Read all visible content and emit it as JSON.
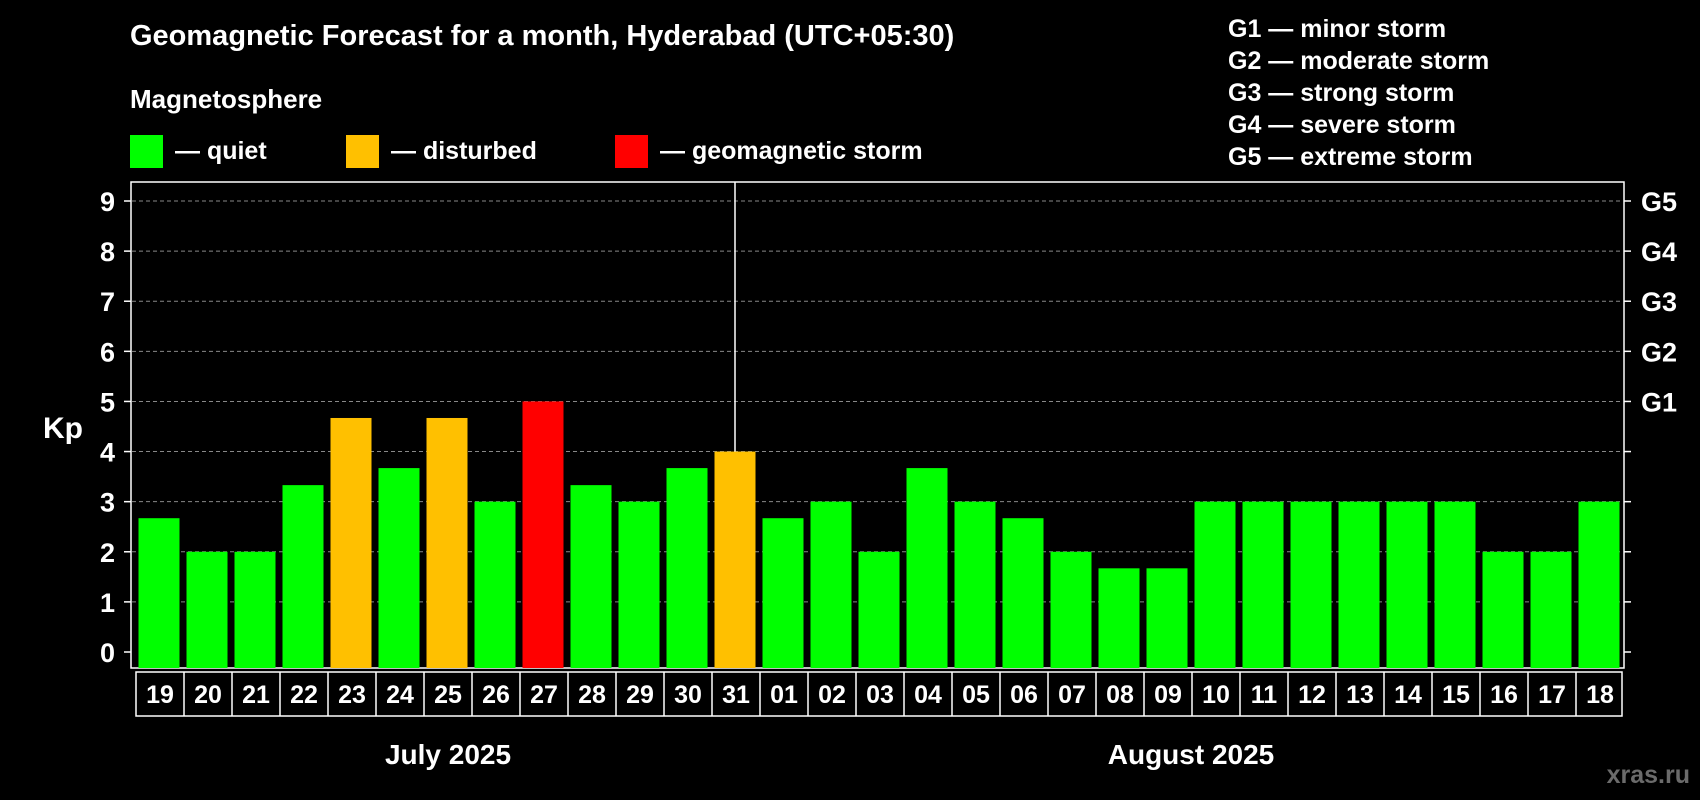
{
  "header": {
    "title": "Geomagnetic Forecast for a month, Hyderabad (UTC+05:30)",
    "magnetosphere_label": "Magnetosphere",
    "legend": [
      {
        "label": "— quiet",
        "color": "#00ff00"
      },
      {
        "label": "— disturbed",
        "color": "#ffc000"
      },
      {
        "label": "— geomagnetic storm",
        "color": "#ff0000"
      }
    ],
    "g_scale": [
      "G1 — minor storm",
      "G2 — moderate storm",
      "G3 — strong storm",
      "G4 — severe storm",
      "G5 — extreme storm"
    ]
  },
  "watermark": "xras.ru",
  "chart_data": {
    "type": "bar",
    "title": "Geomagnetic Forecast for a month, Hyderabad (UTC+05:30)",
    "ylabel": "Kp",
    "ylim": [
      0,
      9
    ],
    "yticks": [
      "0",
      "1",
      "2",
      "3",
      "4",
      "5",
      "6",
      "7",
      "8",
      "9"
    ],
    "right_ticks": [
      {
        "value": 5,
        "label": "G1"
      },
      {
        "value": 6,
        "label": "G2"
      },
      {
        "value": 7,
        "label": "G3"
      },
      {
        "value": 8,
        "label": "G4"
      },
      {
        "value": 9,
        "label": "G5"
      }
    ],
    "grid": "dashed horizontal",
    "month_labels": [
      "July 2025",
      "August 2025"
    ],
    "month_split_index": 13,
    "categories": [
      "19",
      "20",
      "21",
      "22",
      "23",
      "24",
      "25",
      "26",
      "27",
      "28",
      "29",
      "30",
      "31",
      "01",
      "02",
      "03",
      "04",
      "05",
      "06",
      "07",
      "08",
      "09",
      "10",
      "11",
      "12",
      "13",
      "14",
      "15",
      "16",
      "17",
      "18"
    ],
    "values": [
      2.67,
      2,
      2,
      3.33,
      4.67,
      3.67,
      4.67,
      3,
      5,
      3.33,
      3,
      3.67,
      4,
      2.67,
      3,
      2,
      3.67,
      3,
      2.67,
      2,
      1.67,
      1.67,
      3,
      3,
      3,
      3,
      3,
      3,
      2,
      2,
      3
    ],
    "levels": [
      "quiet",
      "quiet",
      "quiet",
      "quiet",
      "disturbed",
      "quiet",
      "disturbed",
      "quiet",
      "storm",
      "quiet",
      "quiet",
      "quiet",
      "disturbed",
      "quiet",
      "quiet",
      "quiet",
      "quiet",
      "quiet",
      "quiet",
      "quiet",
      "quiet",
      "quiet",
      "quiet",
      "quiet",
      "quiet",
      "quiet",
      "quiet",
      "quiet",
      "quiet",
      "quiet",
      "quiet"
    ],
    "colors": {
      "quiet": "#00ff00",
      "disturbed": "#ffc000",
      "storm": "#ff0000"
    }
  }
}
